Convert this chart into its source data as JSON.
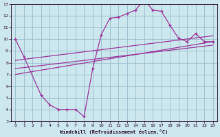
{
  "xlabel": "Windchill (Refroidissement éolien,°C)",
  "bg_color": "#cce8ee",
  "grid_color": "#99bbcc",
  "line_color": "#993399",
  "xlim": [
    -0.5,
    23.5
  ],
  "ylim": [
    3,
    13
  ],
  "xticks": [
    0,
    1,
    2,
    3,
    4,
    5,
    6,
    7,
    8,
    9,
    10,
    11,
    12,
    13,
    14,
    15,
    16,
    17,
    18,
    19,
    20,
    21,
    22,
    23
  ],
  "yticks": [
    3,
    4,
    5,
    6,
    7,
    8,
    9,
    10,
    11,
    12,
    13
  ],
  "main_x": [
    0,
    1,
    3,
    4,
    5,
    6,
    7,
    8,
    9,
    10,
    11,
    12,
    13,
    14,
    15,
    16,
    17,
    18,
    19,
    20,
    21,
    22,
    23
  ],
  "main_y": [
    10,
    8.5,
    5.2,
    4.4,
    4.0,
    4.0,
    4.0,
    3.4,
    7.5,
    10.4,
    11.8,
    11.9,
    12.2,
    12.5,
    13.4,
    12.5,
    12.4,
    11.2,
    10.1,
    9.8,
    10.5,
    9.8,
    9.8
  ],
  "line1_x": [
    0,
    23
  ],
  "line1_y": [
    7.5,
    9.5
  ],
  "line2_x": [
    0,
    23
  ],
  "line2_y": [
    8.2,
    10.3
  ],
  "line3_x": [
    0,
    23
  ],
  "line3_y": [
    7.0,
    9.8
  ]
}
